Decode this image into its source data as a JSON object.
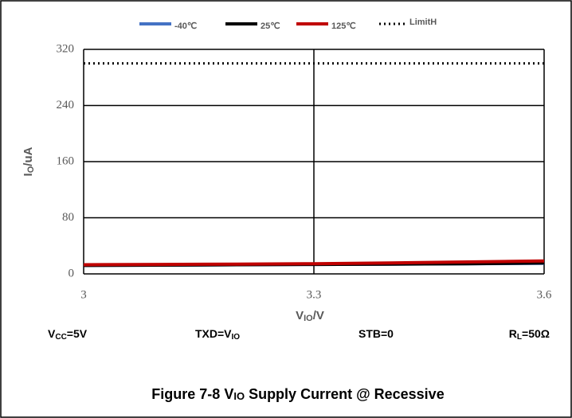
{
  "chart_data": {
    "type": "line",
    "title": [
      "Figure 7-8 V",
      "IO",
      " Supply Current @ Recessive"
    ],
    "x_label": [
      "V",
      "IO",
      "/V"
    ],
    "y_label": [
      "I",
      "O",
      "/uA"
    ],
    "annotations": [
      [
        "V",
        "CC",
        "=5V"
      ],
      [
        "TXD=V",
        "IO"
      ],
      [
        "STB=0"
      ],
      [
        "R",
        "L",
        "=50Ω"
      ]
    ],
    "x": [
      3,
      3.1,
      3.2,
      3.3,
      3.4,
      3.5,
      3.6
    ],
    "series": [
      {
        "name": "-40℃",
        "color": "#4472c4",
        "values": [
          12,
          12.5,
          13,
          13.5,
          14,
          14.5,
          15
        ]
      },
      {
        "name": "25℃",
        "color": "#000000",
        "values": [
          12,
          12.5,
          13,
          13.5,
          14,
          14.5,
          15.5
        ]
      },
      {
        "name": "125℃",
        "color": "#c00000",
        "values": [
          13,
          13.5,
          14,
          14.5,
          15.5,
          17,
          18.5
        ]
      },
      {
        "name": "LimitH",
        "color": "#000000",
        "dash": "dotted",
        "values": [
          300,
          300,
          300,
          300,
          300,
          300,
          300
        ]
      }
    ],
    "xlim": [
      3,
      3.6
    ],
    "xticks": [
      3,
      3.3,
      3.6
    ],
    "ylim": [
      0,
      320
    ],
    "yticks": [
      0,
      80,
      160,
      240,
      320
    ],
    "grid": true,
    "legend": "top"
  }
}
